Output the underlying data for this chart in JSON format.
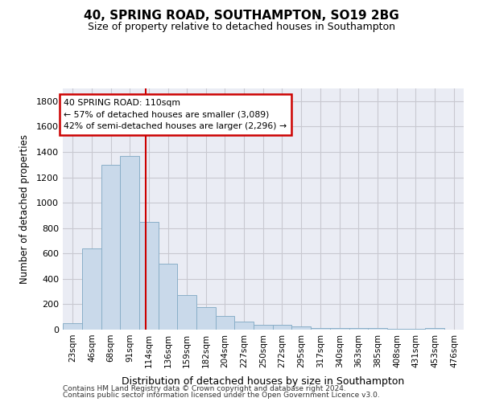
{
  "title1": "40, SPRING ROAD, SOUTHAMPTON, SO19 2BG",
  "title2": "Size of property relative to detached houses in Southampton",
  "xlabel": "Distribution of detached houses by size in Southampton",
  "ylabel": "Number of detached properties",
  "annotation_title": "40 SPRING ROAD: 110sqm",
  "annotation_line1": "← 57% of detached houses are smaller (3,089)",
  "annotation_line2": "42% of semi-detached houses are larger (2,296) →",
  "footer1": "Contains HM Land Registry data © Crown copyright and database right 2024.",
  "footer2": "Contains public sector information licensed under the Open Government Licence v3.0.",
  "bar_color": "#c9d9ea",
  "bar_edge_color": "#8aafc8",
  "vline_color": "#cc0000",
  "vline_x": 110,
  "categories": [
    "23sqm",
    "46sqm",
    "68sqm",
    "91sqm",
    "114sqm",
    "136sqm",
    "159sqm",
    "182sqm",
    "204sqm",
    "227sqm",
    "250sqm",
    "272sqm",
    "295sqm",
    "317sqm",
    "340sqm",
    "363sqm",
    "385sqm",
    "408sqm",
    "431sqm",
    "453sqm",
    "476sqm"
  ],
  "bin_edges": [
    11.5,
    34.5,
    57.5,
    79.5,
    102.5,
    125.5,
    147.5,
    170.5,
    193.5,
    215.5,
    238.5,
    261.5,
    283.5,
    306.5,
    329.5,
    352.5,
    374.5,
    397.5,
    420.5,
    442.5,
    465.5,
    488.5
  ],
  "values": [
    50,
    640,
    1300,
    1370,
    850,
    520,
    275,
    175,
    105,
    65,
    35,
    35,
    28,
    15,
    12,
    10,
    10,
    5,
    5,
    12,
    0
  ],
  "ylim": [
    0,
    1900
  ],
  "yticks": [
    0,
    200,
    400,
    600,
    800,
    1000,
    1200,
    1400,
    1600,
    1800
  ],
  "grid_color": "#c8c8d0",
  "bg_color": "#eaecf4",
  "annotation_box_color": "#ffffff",
  "annotation_box_edge": "#cc0000",
  "fig_width": 6.0,
  "fig_height": 5.0,
  "dpi": 100
}
